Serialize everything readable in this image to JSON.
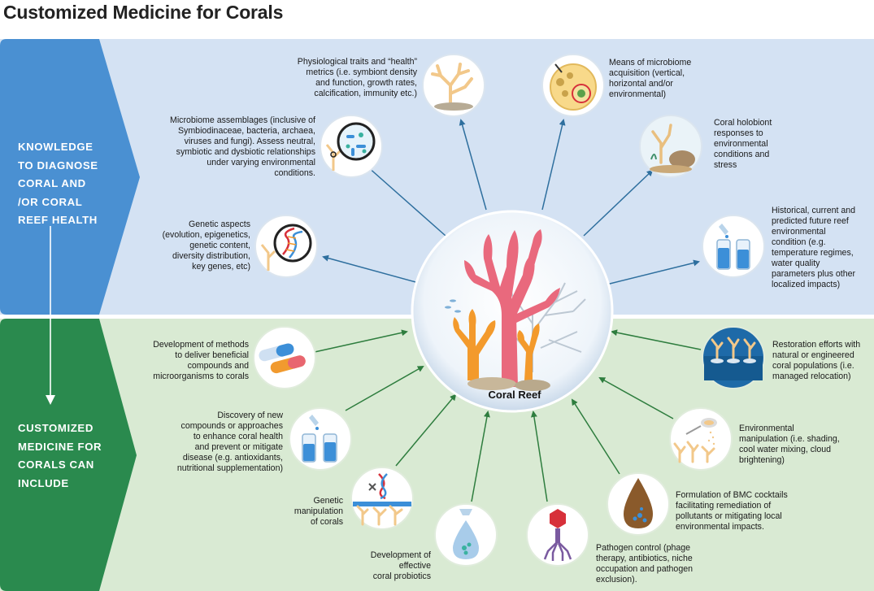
{
  "title": "Customized Medicine for Corals",
  "sections": {
    "top": {
      "label": "KNOWLEDGE\nTO DIAGNOSE\nCORAL AND\n/OR CORAL\nREEF HEALTH"
    },
    "bottom": {
      "label": "CUSTOMIZED\nMEDICINE FOR\nCORALS CAN\nINCLUDE"
    }
  },
  "center": {
    "label": "Coral Reef"
  },
  "nodes": {
    "physiological": "Physiological traits and “health”\nmetrics (i.e. symbiont density\nand function, growth rates,\ncalcification,  immunity etc.)",
    "microbiome_acq": "Means of microbiome\nacquisition (vertical,\nhorizontal and/or\nenvironmental)",
    "microbiome_assemblages": "Microbiome assemblages (inclusive of\nSymbiodinaceae, bacteria, archaea,\nviruses and fungi). Assess neutral,\nsymbiotic and dysbiotic relationships\nunder varying environmental\nconditions.",
    "holobiont": "Coral holobiont\nresponses to\nenvironmental\nconditions and\nstress",
    "genetic_aspects": "Genetic aspects\n(evolution, epigenetics,\ngenetic content,\ndiversity distribution,\nkey genes, etc)",
    "historical": "Historical, current and\npredicted future reef\nenvironmental\ncondition (e.g.\ntemperature regimes,\nwater quality\nparameters plus other\nlocalized impacts)",
    "delivery": "Development of methods\nto deliver beneficial\ncompounds and\nmicroorganisms to corals",
    "restoration": "Restoration efforts with\nnatural or engineered\ncoral populations (i.e.\nmanaged relocation)",
    "discovery": "Discovery of new\ncompounds or approaches\nto enhance coral health\nand prevent or mitigate\ndisease (e.g. antioxidants,\nnutritional supplementation)",
    "env_manipulation": "Environmental\nmanipulation (i.e.  shading,\ncool water mixing,  cloud\nbrightening)",
    "genetic_manipulation": "Genetic\nmanipulation\nof corals",
    "bmc": "Formulation of BMC cocktails\nfacilitating remediation of\npollutants or mitigating local\nenvironmental impacts.",
    "probiotics": "Development of\neffective\ncoral probiotics",
    "pathogen": "Pathogen control (phage\ntherapy, antibiotics, niche\noccupation and pathogen\nexclusion)."
  },
  "colors": {
    "top_band": "#d4e2f3",
    "bottom_band": "#d9ead3",
    "top_chevron": "#4a90d2",
    "bottom_chevron": "#2a8a4e",
    "top_arrow": "#2e6f9e",
    "bottom_arrow": "#2e7d3e",
    "coral_red": "#e9697d",
    "coral_orange": "#f39a2c"
  },
  "icons": {
    "physiological": "coral-branch-icon",
    "microbiome_acq": "petri-dish-icon",
    "microbiome_assemblages": "magnifier-microbes-icon",
    "holobiont": "coral-holobiont-icon",
    "genetic_aspects": "dna-magnifier-icon",
    "historical": "test-tubes-icon",
    "delivery": "capsules-icon",
    "restoration": "coral-restoration-icon",
    "discovery": "test-tubes-dropper-icon",
    "env_manipulation": "shading-spoon-icon",
    "genetic_manipulation": "dna-scissors-icon",
    "bmc": "droplet-bmc-icon",
    "probiotics": "probiotic-drop-icon",
    "pathogen": "bacteriophage-icon"
  }
}
